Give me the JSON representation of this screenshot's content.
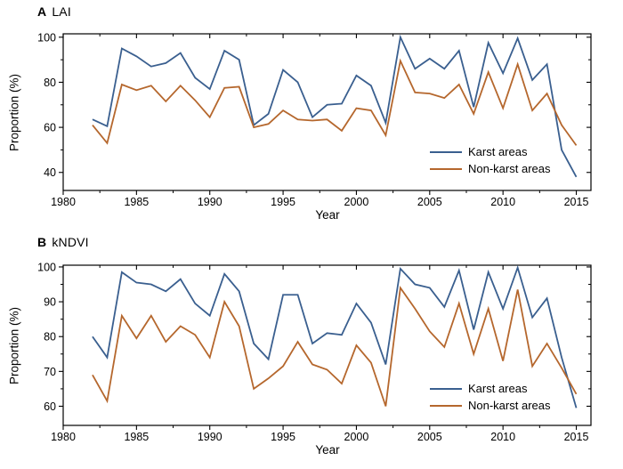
{
  "figure": {
    "panels": [
      {
        "title_letter": "A",
        "title_text": "LAI",
        "ylabel": "Proportion (%)",
        "xlabel": "Year"
      },
      {
        "title_letter": "B",
        "title_text": "kNDVI",
        "ylabel": "Proportion (%)",
        "xlabel": "Year"
      }
    ],
    "legend_labels": [
      "Karst areas",
      "Non-karst areas"
    ]
  },
  "colors": {
    "karst": "#3A5F8F",
    "nonkarst": "#B5672D",
    "axis": "#000000",
    "text": "#000000"
  },
  "chart_data": [
    {
      "type": "line",
      "panel": "A",
      "title": "A LAI",
      "xlabel": "Year",
      "ylabel": "Proportion (%)",
      "x": [
        1982,
        1983,
        1984,
        1985,
        1986,
        1987,
        1988,
        1989,
        1990,
        1991,
        1992,
        1993,
        1994,
        1995,
        1996,
        1997,
        1998,
        1999,
        2000,
        2001,
        2002,
        2003,
        2004,
        2005,
        2006,
        2007,
        2008,
        2009,
        2010,
        2011,
        2012,
        2013,
        2014,
        2015
      ],
      "series": [
        {
          "name": "Karst areas",
          "color": "#3A5F8F",
          "values": [
            63.5,
            60.5,
            95,
            91.5,
            87,
            88.5,
            93,
            82,
            77,
            94,
            90,
            61,
            66,
            85.5,
            80,
            64.5,
            70,
            70.5,
            83,
            78.5,
            62,
            100,
            86,
            90.5,
            86,
            94,
            69,
            97.5,
            84,
            99.5,
            81,
            88,
            50,
            38
          ]
        },
        {
          "name": "Non-karst areas",
          "color": "#B5672D",
          "values": [
            61,
            53,
            79,
            76.5,
            78.5,
            71.5,
            78.5,
            72,
            64.5,
            77.5,
            78,
            60,
            61.5,
            67.5,
            63.5,
            63,
            63.5,
            58.5,
            68.5,
            67.5,
            56.5,
            89.5,
            75.5,
            75,
            73,
            79,
            66,
            84.5,
            68.5,
            88,
            67.5,
            75,
            61,
            52
          ]
        }
      ],
      "xlim": [
        1980,
        2016
      ],
      "ylim": [
        32,
        101.5
      ],
      "x_major_ticks": [
        1980,
        1985,
        1990,
        1995,
        2000,
        2005,
        2010,
        2015
      ],
      "x_minor_step": 2.5,
      "y_major_ticks": [
        40,
        60,
        80,
        100
      ],
      "y_minor_step": 10,
      "grid": false,
      "legend_position": "inside right-center"
    },
    {
      "type": "line",
      "panel": "B",
      "title": "B kNDVI",
      "xlabel": "Year",
      "ylabel": "Proportion (%)",
      "x": [
        1982,
        1983,
        1984,
        1985,
        1986,
        1987,
        1988,
        1989,
        1990,
        1991,
        1992,
        1993,
        1994,
        1995,
        1996,
        1997,
        1998,
        1999,
        2000,
        2001,
        2002,
        2003,
        2004,
        2005,
        2006,
        2007,
        2008,
        2009,
        2010,
        2011,
        2012,
        2013,
        2014,
        2015
      ],
      "series": [
        {
          "name": "Karst areas",
          "color": "#3A5F8F",
          "values": [
            80,
            74,
            98.5,
            95.5,
            95,
            93,
            96.5,
            89.5,
            86,
            98,
            93,
            78,
            73.5,
            92,
            92,
            78,
            81,
            80.5,
            89.5,
            84,
            72,
            99.5,
            95,
            94,
            88.5,
            99,
            82,
            98.5,
            88,
            99.8,
            85.5,
            91,
            74,
            59.5
          ]
        },
        {
          "name": "Non-karst areas",
          "color": "#B5672D",
          "values": [
            69,
            61.5,
            86,
            79.5,
            86,
            78.5,
            83,
            80.5,
            74,
            90,
            83,
            65,
            68,
            71.5,
            78.5,
            72,
            70.5,
            66.5,
            77.5,
            72.5,
            60,
            94,
            88,
            81.5,
            77,
            89.5,
            75,
            88,
            73,
            93.5,
            71.5,
            78,
            71,
            63.5
          ]
        }
      ],
      "xlim": [
        1980,
        2016
      ],
      "ylim": [
        54.5,
        100.5
      ],
      "x_major_ticks": [
        1980,
        1985,
        1990,
        1995,
        2000,
        2005,
        2010,
        2015
      ],
      "x_minor_step": 2.5,
      "y_major_ticks": [
        60,
        70,
        80,
        90,
        100
      ],
      "y_minor_step": 5,
      "grid": false,
      "legend_position": "inside right-lower"
    }
  ]
}
